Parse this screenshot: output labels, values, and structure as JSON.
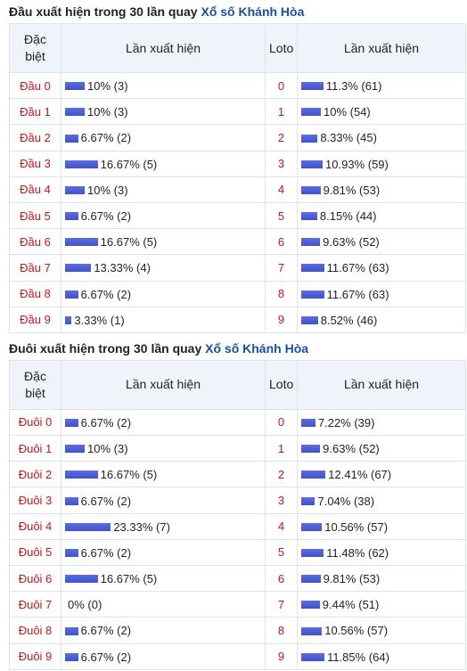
{
  "sections": [
    {
      "title": "Đầu xuất hiện trong 30 lần quay",
      "title_link": "Xổ số Khánh Hòa",
      "headers": [
        "Đặc biệt",
        "Lần xuất hiện",
        "Loto",
        "Lần xuất hiện"
      ],
      "rows": [
        {
          "name": "Đầu 0",
          "value": 10,
          "value_label": "10% (3)",
          "loto": 0,
          "loto_value": 11.3,
          "loto_value_label": "11.3% (61)"
        },
        {
          "name": "Đầu 1",
          "value": 10,
          "value_label": "10% (3)",
          "loto": 1,
          "loto_value": 10,
          "loto_value_label": "10% (54)"
        },
        {
          "name": "Đầu 2",
          "value": 6.67,
          "value_label": "6.67% (2)",
          "loto": 2,
          "loto_value": 8.33,
          "loto_value_label": "8.33% (45)"
        },
        {
          "name": "Đầu 3",
          "value": 16.67,
          "value_label": "16.67% (5)",
          "loto": 3,
          "loto_value": 10.93,
          "loto_value_label": "10.93% (59)"
        },
        {
          "name": "Đầu 4",
          "value": 10,
          "value_label": "10% (3)",
          "loto": 4,
          "loto_value": 9.81,
          "loto_value_label": "9.81% (53)"
        },
        {
          "name": "Đầu 5",
          "value": 6.67,
          "value_label": "6.67% (2)",
          "loto": 5,
          "loto_value": 8.15,
          "loto_value_label": "8.15% (44)"
        },
        {
          "name": "Đầu 6",
          "value": 16.67,
          "value_label": "16.67% (5)",
          "loto": 6,
          "loto_value": 9.63,
          "loto_value_label": "9.63% (52)"
        },
        {
          "name": "Đầu 7",
          "value": 13.33,
          "value_label": "13.33% (4)",
          "loto": 7,
          "loto_value": 11.67,
          "loto_value_label": "11.67% (63)"
        },
        {
          "name": "Đầu 8",
          "value": 6.67,
          "value_label": "6.67% (2)",
          "loto": 8,
          "loto_value": 11.67,
          "loto_value_label": "11.67% (63)"
        },
        {
          "name": "Đầu 9",
          "value": 3.33,
          "value_label": "3.33% (1)",
          "loto": 9,
          "loto_value": 8.52,
          "loto_value_label": "8.52% (46)"
        }
      ]
    },
    {
      "title": "Đuôi xuất hiện trong 30 lần quay",
      "title_link": "Xổ số Khánh Hòa",
      "headers": [
        "Đặc biệt",
        "Lần xuất hiện",
        "Loto",
        "Lần xuất hiện"
      ],
      "rows": [
        {
          "name": "Đuôi 0",
          "value": 6.67,
          "value_label": "6.67% (2)",
          "loto": 0,
          "loto_value": 7.22,
          "loto_value_label": "7.22% (39)"
        },
        {
          "name": "Đuôi 1",
          "value": 10,
          "value_label": "10% (3)",
          "loto": 1,
          "loto_value": 9.63,
          "loto_value_label": "9.63% (52)"
        },
        {
          "name": "Đuôi 2",
          "value": 16.67,
          "value_label": "16.67% (5)",
          "loto": 2,
          "loto_value": 12.41,
          "loto_value_label": "12.41% (67)"
        },
        {
          "name": "Đuôi 3",
          "value": 6.67,
          "value_label": "6.67% (2)",
          "loto": 3,
          "loto_value": 7.04,
          "loto_value_label": "7.04% (38)"
        },
        {
          "name": "Đuôi 4",
          "value": 23.33,
          "value_label": "23.33% (7)",
          "loto": 4,
          "loto_value": 10.56,
          "loto_value_label": "10.56% (57)"
        },
        {
          "name": "Đuôi 5",
          "value": 6.67,
          "value_label": "6.67% (2)",
          "loto": 5,
          "loto_value": 11.48,
          "loto_value_label": "11.48% (62)"
        },
        {
          "name": "Đuôi 6",
          "value": 16.67,
          "value_label": "16.67% (5)",
          "loto": 6,
          "loto_value": 9.81,
          "loto_value_label": "9.81% (53)"
        },
        {
          "name": "Đuôi 7",
          "value": 0,
          "value_label": "0% (0)",
          "loto": 7,
          "loto_value": 9.44,
          "loto_value_label": "9.44% (51)"
        },
        {
          "name": "Đuôi 8",
          "value": 6.67,
          "value_label": "6.67% (2)",
          "loto": 8,
          "loto_value": 10.56,
          "loto_value_label": "10.56% (57)"
        },
        {
          "name": "Đuôi 9",
          "value": 6.67,
          "value_label": "6.67% (2)",
          "loto": 9,
          "loto_value": 11.85,
          "loto_value_label": "11.85% (64)"
        }
      ]
    }
  ]
}
